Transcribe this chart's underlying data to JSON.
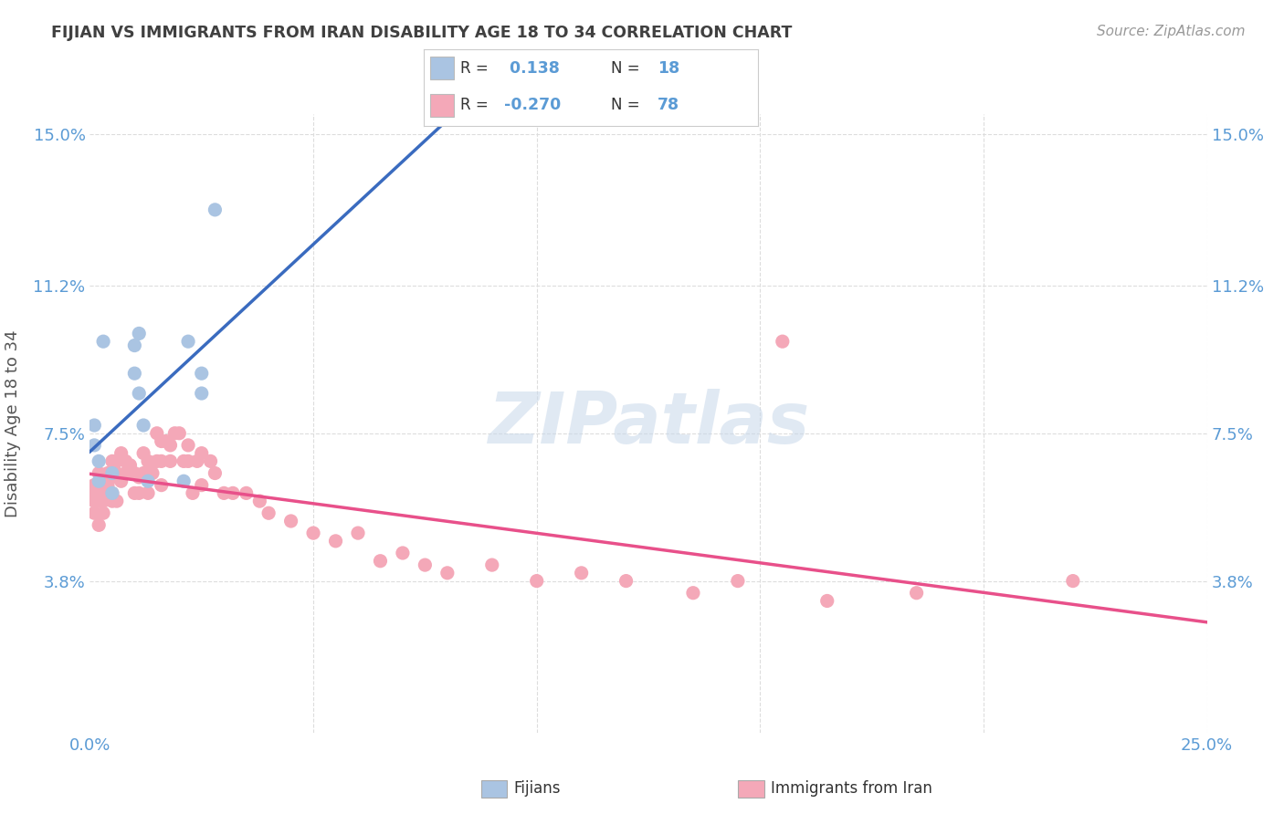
{
  "title": "FIJIAN VS IMMIGRANTS FROM IRAN DISABILITY AGE 18 TO 34 CORRELATION CHART",
  "source": "Source: ZipAtlas.com",
  "ylabel": "Disability Age 18 to 34",
  "xlim": [
    0.0,
    0.25
  ],
  "ylim": [
    0.0,
    0.155
  ],
  "ytick_positions": [
    0.038,
    0.075,
    0.112,
    0.15
  ],
  "ytick_labels": [
    "3.8%",
    "7.5%",
    "11.2%",
    "15.0%"
  ],
  "fijian_color": "#aac4e2",
  "iran_color": "#f4a8b8",
  "fijian_line_color": "#3a6bbf",
  "iran_line_color": "#e8508a",
  "trend_dash_color": "#b0b0b0",
  "R_fijian": 0.138,
  "N_fijian": 18,
  "R_iran": -0.27,
  "N_iran": 78,
  "legend_label_fijian": "Fijians",
  "legend_label_iran": "Immigrants from Iran",
  "watermark": "ZIPatlas",
  "fijian_scatter_x": [
    0.001,
    0.001,
    0.002,
    0.002,
    0.003,
    0.005,
    0.005,
    0.01,
    0.01,
    0.011,
    0.011,
    0.012,
    0.013,
    0.021,
    0.022,
    0.025,
    0.025,
    0.028
  ],
  "fijian_scatter_y": [
    0.072,
    0.077,
    0.068,
    0.063,
    0.098,
    0.06,
    0.065,
    0.097,
    0.09,
    0.1,
    0.085,
    0.077,
    0.063,
    0.063,
    0.098,
    0.09,
    0.085,
    0.131
  ],
  "iran_scatter_x": [
    0.0,
    0.001,
    0.001,
    0.001,
    0.001,
    0.002,
    0.002,
    0.002,
    0.002,
    0.003,
    0.003,
    0.003,
    0.004,
    0.004,
    0.004,
    0.005,
    0.005,
    0.005,
    0.005,
    0.006,
    0.006,
    0.006,
    0.007,
    0.007,
    0.008,
    0.008,
    0.009,
    0.01,
    0.01,
    0.011,
    0.011,
    0.012,
    0.012,
    0.013,
    0.013,
    0.014,
    0.015,
    0.015,
    0.016,
    0.016,
    0.016,
    0.017,
    0.018,
    0.018,
    0.019,
    0.02,
    0.021,
    0.022,
    0.022,
    0.023,
    0.024,
    0.025,
    0.025,
    0.027,
    0.028,
    0.03,
    0.032,
    0.035,
    0.038,
    0.04,
    0.045,
    0.05,
    0.055,
    0.06,
    0.065,
    0.07,
    0.075,
    0.08,
    0.09,
    0.1,
    0.11,
    0.12,
    0.135,
    0.145,
    0.155,
    0.165,
    0.185,
    0.22
  ],
  "iran_scatter_y": [
    0.06,
    0.062,
    0.058,
    0.055,
    0.062,
    0.065,
    0.06,
    0.058,
    0.052,
    0.062,
    0.058,
    0.055,
    0.065,
    0.062,
    0.06,
    0.068,
    0.064,
    0.06,
    0.058,
    0.068,
    0.065,
    0.058,
    0.07,
    0.063,
    0.068,
    0.065,
    0.067,
    0.065,
    0.06,
    0.064,
    0.06,
    0.07,
    0.065,
    0.068,
    0.06,
    0.065,
    0.075,
    0.068,
    0.073,
    0.068,
    0.062,
    0.073,
    0.072,
    0.068,
    0.075,
    0.075,
    0.068,
    0.072,
    0.068,
    0.06,
    0.068,
    0.062,
    0.07,
    0.068,
    0.065,
    0.06,
    0.06,
    0.06,
    0.058,
    0.055,
    0.053,
    0.05,
    0.048,
    0.05,
    0.043,
    0.045,
    0.042,
    0.04,
    0.042,
    0.038,
    0.04,
    0.038,
    0.035,
    0.038,
    0.098,
    0.033,
    0.035,
    0.038
  ],
  "background_color": "#ffffff",
  "grid_color": "#dddddd",
  "title_color": "#404040",
  "axis_label_color": "#555555",
  "tick_label_color": "#5b9bd5",
  "fijian_trend_x_end": 0.112,
  "gray_dash_intercept": 0.062,
  "gray_dash_slope": 0.18
}
